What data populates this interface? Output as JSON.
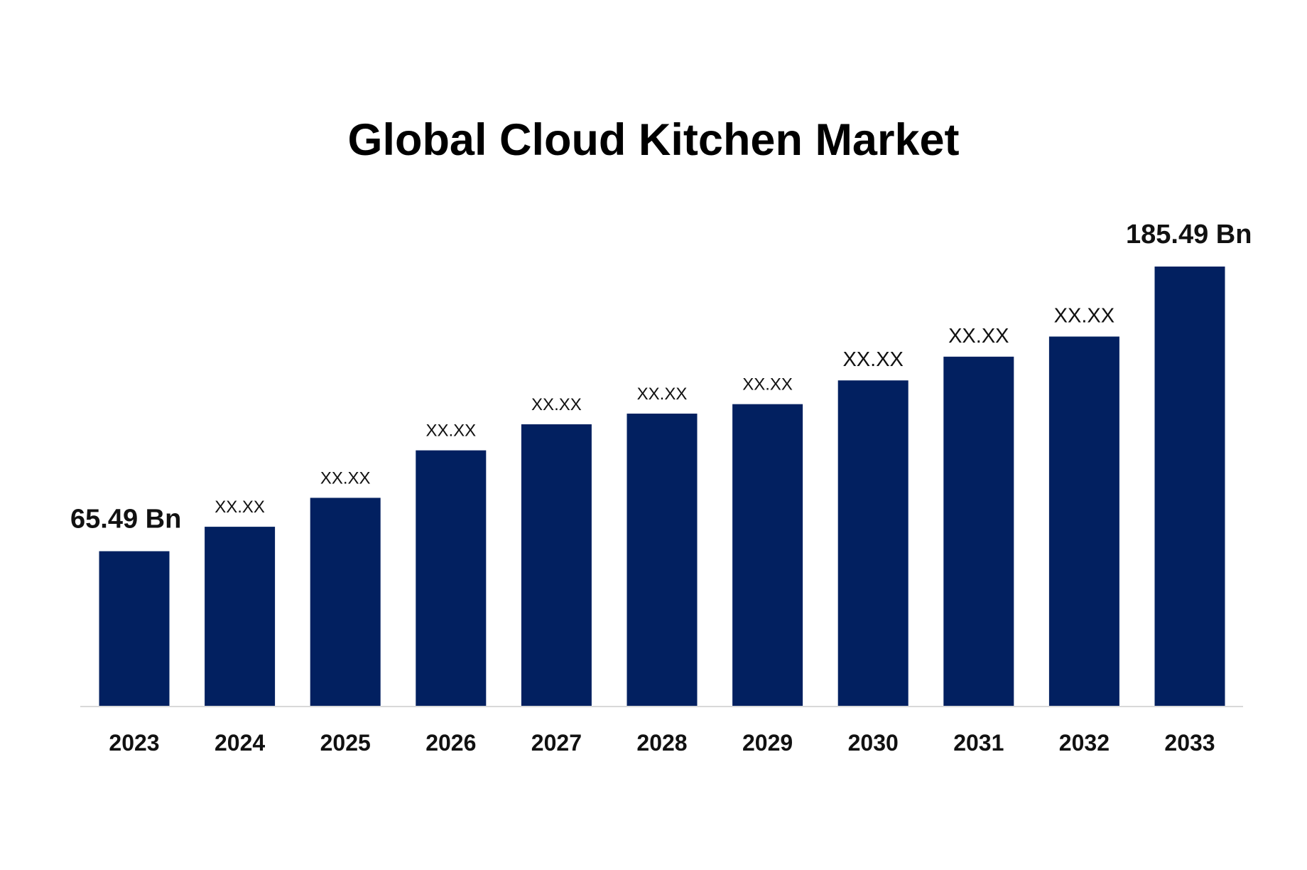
{
  "chart_data": {
    "type": "bar",
    "title": "Global Cloud Kitchen Market",
    "xlabel": "",
    "ylabel": "",
    "unit": "Bn",
    "categories": [
      "2023",
      "2024",
      "2025",
      "2026",
      "2027",
      "2028",
      "2029",
      "2030",
      "2031",
      "2032",
      "2033"
    ],
    "series": [
      {
        "values": [
          65.49,
          75.8,
          88.0,
          108.0,
          119.0,
          123.5,
          127.5,
          137.5,
          147.5,
          156.0,
          185.49
        ],
        "data_labels": [
          "65.49  Bn",
          "XX.XX",
          "XX.XX",
          "XX.XX",
          "XX.XX",
          "XX.XX",
          "XX.XX",
          "XX.XX",
          "XX.XX",
          "XX.XX",
          "185.49 Bn"
        ],
        "color": "#022060"
      }
    ],
    "ylim": [
      0,
      190
    ],
    "grid": false,
    "legend": "none",
    "axis_line_color": "#d9d9d9"
  }
}
